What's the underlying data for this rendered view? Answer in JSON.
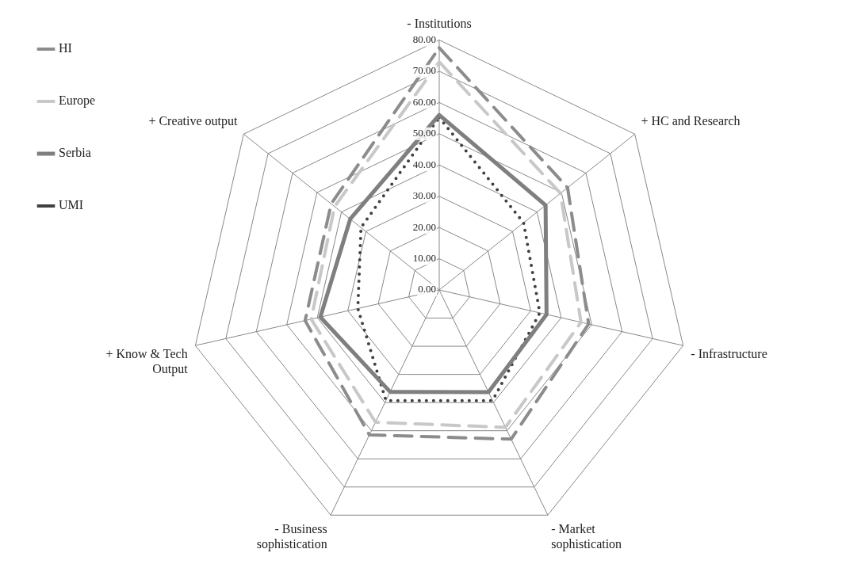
{
  "chart_data": {
    "type": "radar",
    "categories": [
      "- Institutions",
      "+ HC and Research",
      "- Infrastructure",
      "- Market sophistication",
      "- Business sophistication",
      "+ Know & Tech Output",
      "+ Creative output"
    ],
    "series": [
      {
        "name": "HI",
        "color": "#8c8c8c",
        "line_style": "dashed",
        "values": [
          77.5,
          52.5,
          49,
          53,
          51.5,
          44,
          44.2
        ]
      },
      {
        "name": "Europe",
        "color": "#c8c8c8",
        "line_style": "dashed",
        "values": [
          73,
          49.6,
          46.5,
          48.8,
          47,
          42,
          42.8
        ]
      },
      {
        "name": "Serbia",
        "color": "#7f7f7f",
        "line_style": "solid",
        "values": [
          56,
          43.5,
          35.2,
          36.3,
          36.2,
          39,
          36.4
        ]
      },
      {
        "name": "UMI",
        "color": "#404040",
        "line_style": "dotted",
        "values": [
          55.2,
          34.5,
          33,
          39.3,
          39.3,
          26.7,
          32
        ]
      }
    ],
    "ylim": [
      0,
      80
    ],
    "yticks": [
      {
        "value": 0,
        "label": "0.00"
      },
      {
        "value": 10,
        "label": "10.00"
      },
      {
        "value": 20,
        "label": "20.00"
      },
      {
        "value": 30,
        "label": "30.00"
      },
      {
        "value": 40,
        "label": "40.00"
      },
      {
        "value": 50,
        "label": "50.00"
      },
      {
        "value": 60,
        "label": "60.00"
      },
      {
        "value": 70,
        "label": "70.00"
      },
      {
        "value": 80,
        "label": "80.00"
      }
    ],
    "grid": true,
    "legend": "left",
    "marker": "none"
  }
}
